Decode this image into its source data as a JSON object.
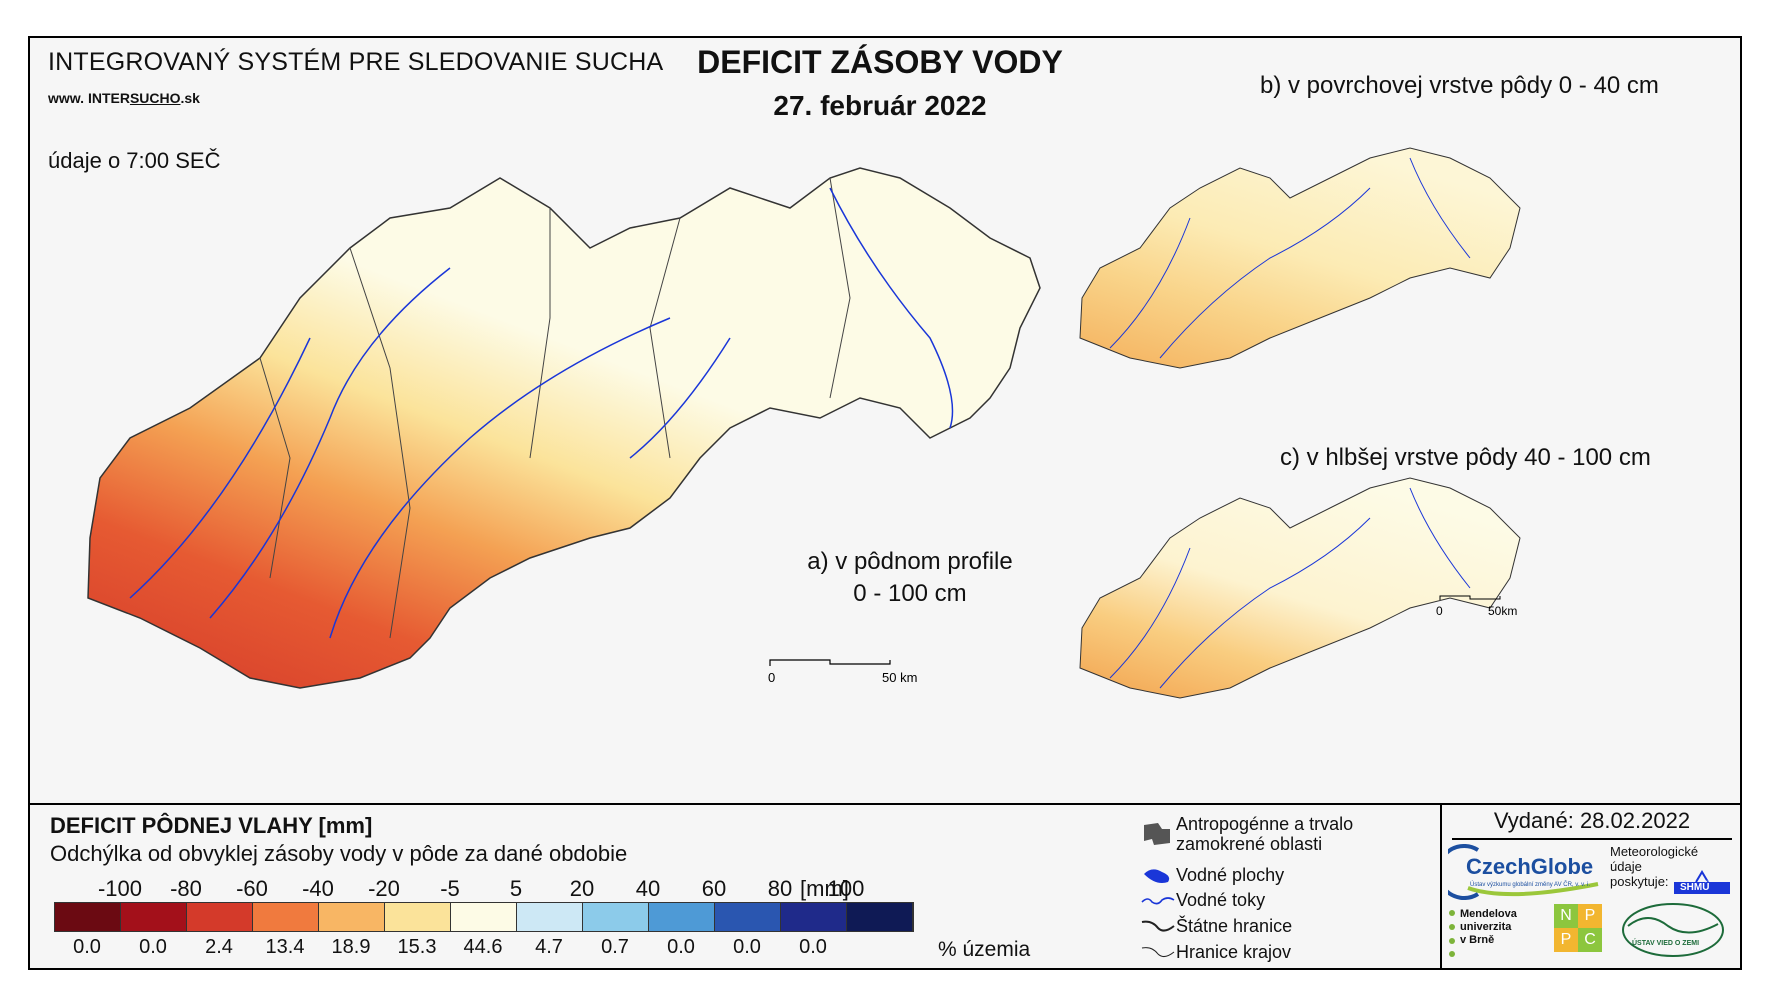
{
  "header": {
    "system_title": "INTEGROVANÝ SYSTÉM PRE SLEDOVANIE SUCHA",
    "website_prefix": "www.",
    "website_mid": "INTER",
    "website_brand": "SUCHO",
    "website_suffix": ".sk",
    "data_time": "údaje o 7:00 SEČ",
    "main_title": "DEFICIT ZÁSOBY VODY",
    "date": "27. február 2022"
  },
  "panels": {
    "a_line1": "a) v pôdnom profile",
    "a_line2": "0 - 100 cm",
    "b": "b) v povrchovej vrstve pôdy 0 - 40 cm",
    "c": "c) v hlbšej vrstve pôdy 40 - 100 cm"
  },
  "scalebars": {
    "main_zero": "0",
    "main_end": "50 km",
    "small_zero": "0",
    "small_end": "50km"
  },
  "legend": {
    "title": "DEFICIT PÔDNEJ VLAHY [mm]",
    "subtitle": "Odchýlka od obvyklej zásoby vody v pôde za dané obdobie",
    "ticks": [
      "-100",
      "-80",
      "-60",
      "-40",
      "-20",
      "-5",
      "5",
      "20",
      "40",
      "60",
      "80",
      "100"
    ],
    "unit": "[mm]",
    "colors": [
      "#6b0a12",
      "#a3101a",
      "#d43a2a",
      "#f07a3e",
      "#f8b664",
      "#fbe39a",
      "#fdfbe6",
      "#cde8f5",
      "#8ccbea",
      "#4e9ad6",
      "#2a56b0",
      "#1f2a8a",
      "#0f1a55"
    ],
    "percent_values": [
      "0.0",
      "0.0",
      "2.4",
      "13.4",
      "18.9",
      "15.3",
      "44.6",
      "4.7",
      "0.7",
      "0.0",
      "0.0",
      "0.0"
    ],
    "percent_unit": "% územia"
  },
  "symbols": {
    "urban": "Antropogénne a trvalo zamokrené oblasti",
    "water_bodies": "Vodné plochy",
    "rivers": "Vodné toky",
    "state_border": "Štátne hranice",
    "region_border": "Hranice krajov"
  },
  "credits": {
    "issued": "Vydané: 28.02.2022",
    "czechglobe": "CzechGlobe",
    "czechglobe_sub": "Ústav výzkumu globální změny AV ČR, v. v. i.",
    "meteo_line1": "Meteorologické",
    "meteo_line2": "údaje",
    "meteo_line3": "poskytuje:",
    "shmu": "SHMÚ",
    "mendel_line1": "Mendelova",
    "mendel_line2": "univerzita",
    "mendel_line3": "v Brně",
    "nppc": [
      "N",
      "P",
      "P",
      "C"
    ],
    "uvz": "ÚSTAV VIED O ZEMI"
  }
}
